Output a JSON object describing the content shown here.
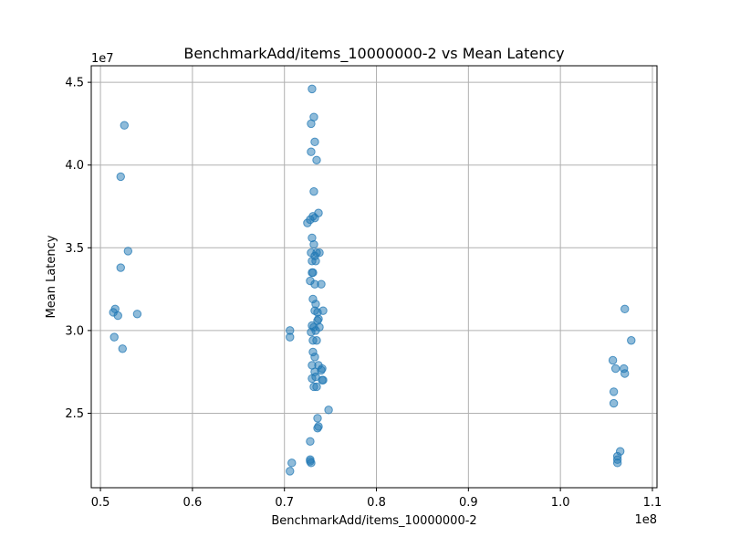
{
  "chart_data": {
    "type": "scatter",
    "title": "BenchmarkAdd/items_10000000-2 vs Mean Latency",
    "xlabel": "BenchmarkAdd/items_10000000-2",
    "ylabel": "Mean Latency",
    "x_offset_label": "1e8",
    "y_offset_label": "1e7",
    "xlim": [
      0.49,
      1.105
    ],
    "ylim": [
      2.05,
      4.6
    ],
    "x_ticks": [
      0.5,
      0.6,
      0.7,
      0.8,
      0.9,
      1.0,
      1.1
    ],
    "x_tick_labels": [
      "0.5",
      "0.6",
      "0.7",
      "0.8",
      "0.9",
      "1.0",
      "1.1"
    ],
    "y_ticks": [
      2.5,
      3.0,
      3.5,
      4.0,
      4.5
    ],
    "y_tick_labels": [
      "2.5",
      "3.0",
      "3.5",
      "4.0",
      "4.5"
    ],
    "grid": true,
    "marker_color": "#1f77b4",
    "marker_opacity": 0.5,
    "points": [
      [
        0.526,
        4.24
      ],
      [
        0.522,
        3.93
      ],
      [
        0.53,
        3.48
      ],
      [
        0.522,
        3.38
      ],
      [
        0.516,
        3.13
      ],
      [
        0.514,
        3.11
      ],
      [
        0.519,
        3.09
      ],
      [
        0.54,
        3.1
      ],
      [
        0.515,
        2.96
      ],
      [
        0.524,
        2.89
      ],
      [
        0.706,
        3.0
      ],
      [
        0.706,
        2.96
      ],
      [
        0.708,
        2.2
      ],
      [
        0.706,
        2.15
      ],
      [
        0.73,
        4.46
      ],
      [
        0.732,
        4.29
      ],
      [
        0.729,
        4.25
      ],
      [
        0.733,
        4.14
      ],
      [
        0.729,
        4.08
      ],
      [
        0.735,
        4.03
      ],
      [
        0.732,
        3.84
      ],
      [
        0.737,
        3.71
      ],
      [
        0.731,
        3.69
      ],
      [
        0.733,
        3.68
      ],
      [
        0.728,
        3.67
      ],
      [
        0.725,
        3.65
      ],
      [
        0.73,
        3.56
      ],
      [
        0.732,
        3.52
      ],
      [
        0.729,
        3.47
      ],
      [
        0.735,
        3.47
      ],
      [
        0.738,
        3.47
      ],
      [
        0.733,
        3.45
      ],
      [
        0.73,
        3.42
      ],
      [
        0.734,
        3.42
      ],
      [
        0.731,
        3.35
      ],
      [
        0.73,
        3.35
      ],
      [
        0.728,
        3.3
      ],
      [
        0.733,
        3.28
      ],
      [
        0.74,
        3.28
      ],
      [
        0.731,
        3.19
      ],
      [
        0.734,
        3.16
      ],
      [
        0.733,
        3.12
      ],
      [
        0.736,
        3.11
      ],
      [
        0.742,
        3.12
      ],
      [
        0.736,
        3.06
      ],
      [
        0.737,
        3.07
      ],
      [
        0.73,
        3.03
      ],
      [
        0.732,
        3.02
      ],
      [
        0.738,
        3.02
      ],
      [
        0.729,
        2.99
      ],
      [
        0.734,
        3.0
      ],
      [
        0.731,
        2.94
      ],
      [
        0.735,
        2.94
      ],
      [
        0.731,
        2.87
      ],
      [
        0.733,
        2.84
      ],
      [
        0.73,
        2.79
      ],
      [
        0.737,
        2.79
      ],
      [
        0.741,
        2.77
      ],
      [
        0.74,
        2.76
      ],
      [
        0.733,
        2.75
      ],
      [
        0.73,
        2.71
      ],
      [
        0.734,
        2.72
      ],
      [
        0.742,
        2.7
      ],
      [
        0.741,
        2.7
      ],
      [
        0.732,
        2.66
      ],
      [
        0.735,
        2.66
      ],
      [
        0.736,
        2.47
      ],
      [
        0.737,
        2.42
      ],
      [
        0.736,
        2.41
      ],
      [
        0.748,
        2.52
      ],
      [
        0.728,
        2.33
      ],
      [
        0.728,
        2.22
      ],
      [
        0.728,
        2.21
      ],
      [
        0.729,
        2.2
      ],
      [
        1.07,
        3.13
      ],
      [
        1.077,
        2.94
      ],
      [
        1.057,
        2.82
      ],
      [
        1.06,
        2.77
      ],
      [
        1.069,
        2.77
      ],
      [
        1.07,
        2.74
      ],
      [
        1.058,
        2.63
      ],
      [
        1.058,
        2.56
      ],
      [
        1.065,
        2.27
      ],
      [
        1.062,
        2.24
      ],
      [
        1.062,
        2.22
      ],
      [
        1.062,
        2.2
      ]
    ]
  }
}
